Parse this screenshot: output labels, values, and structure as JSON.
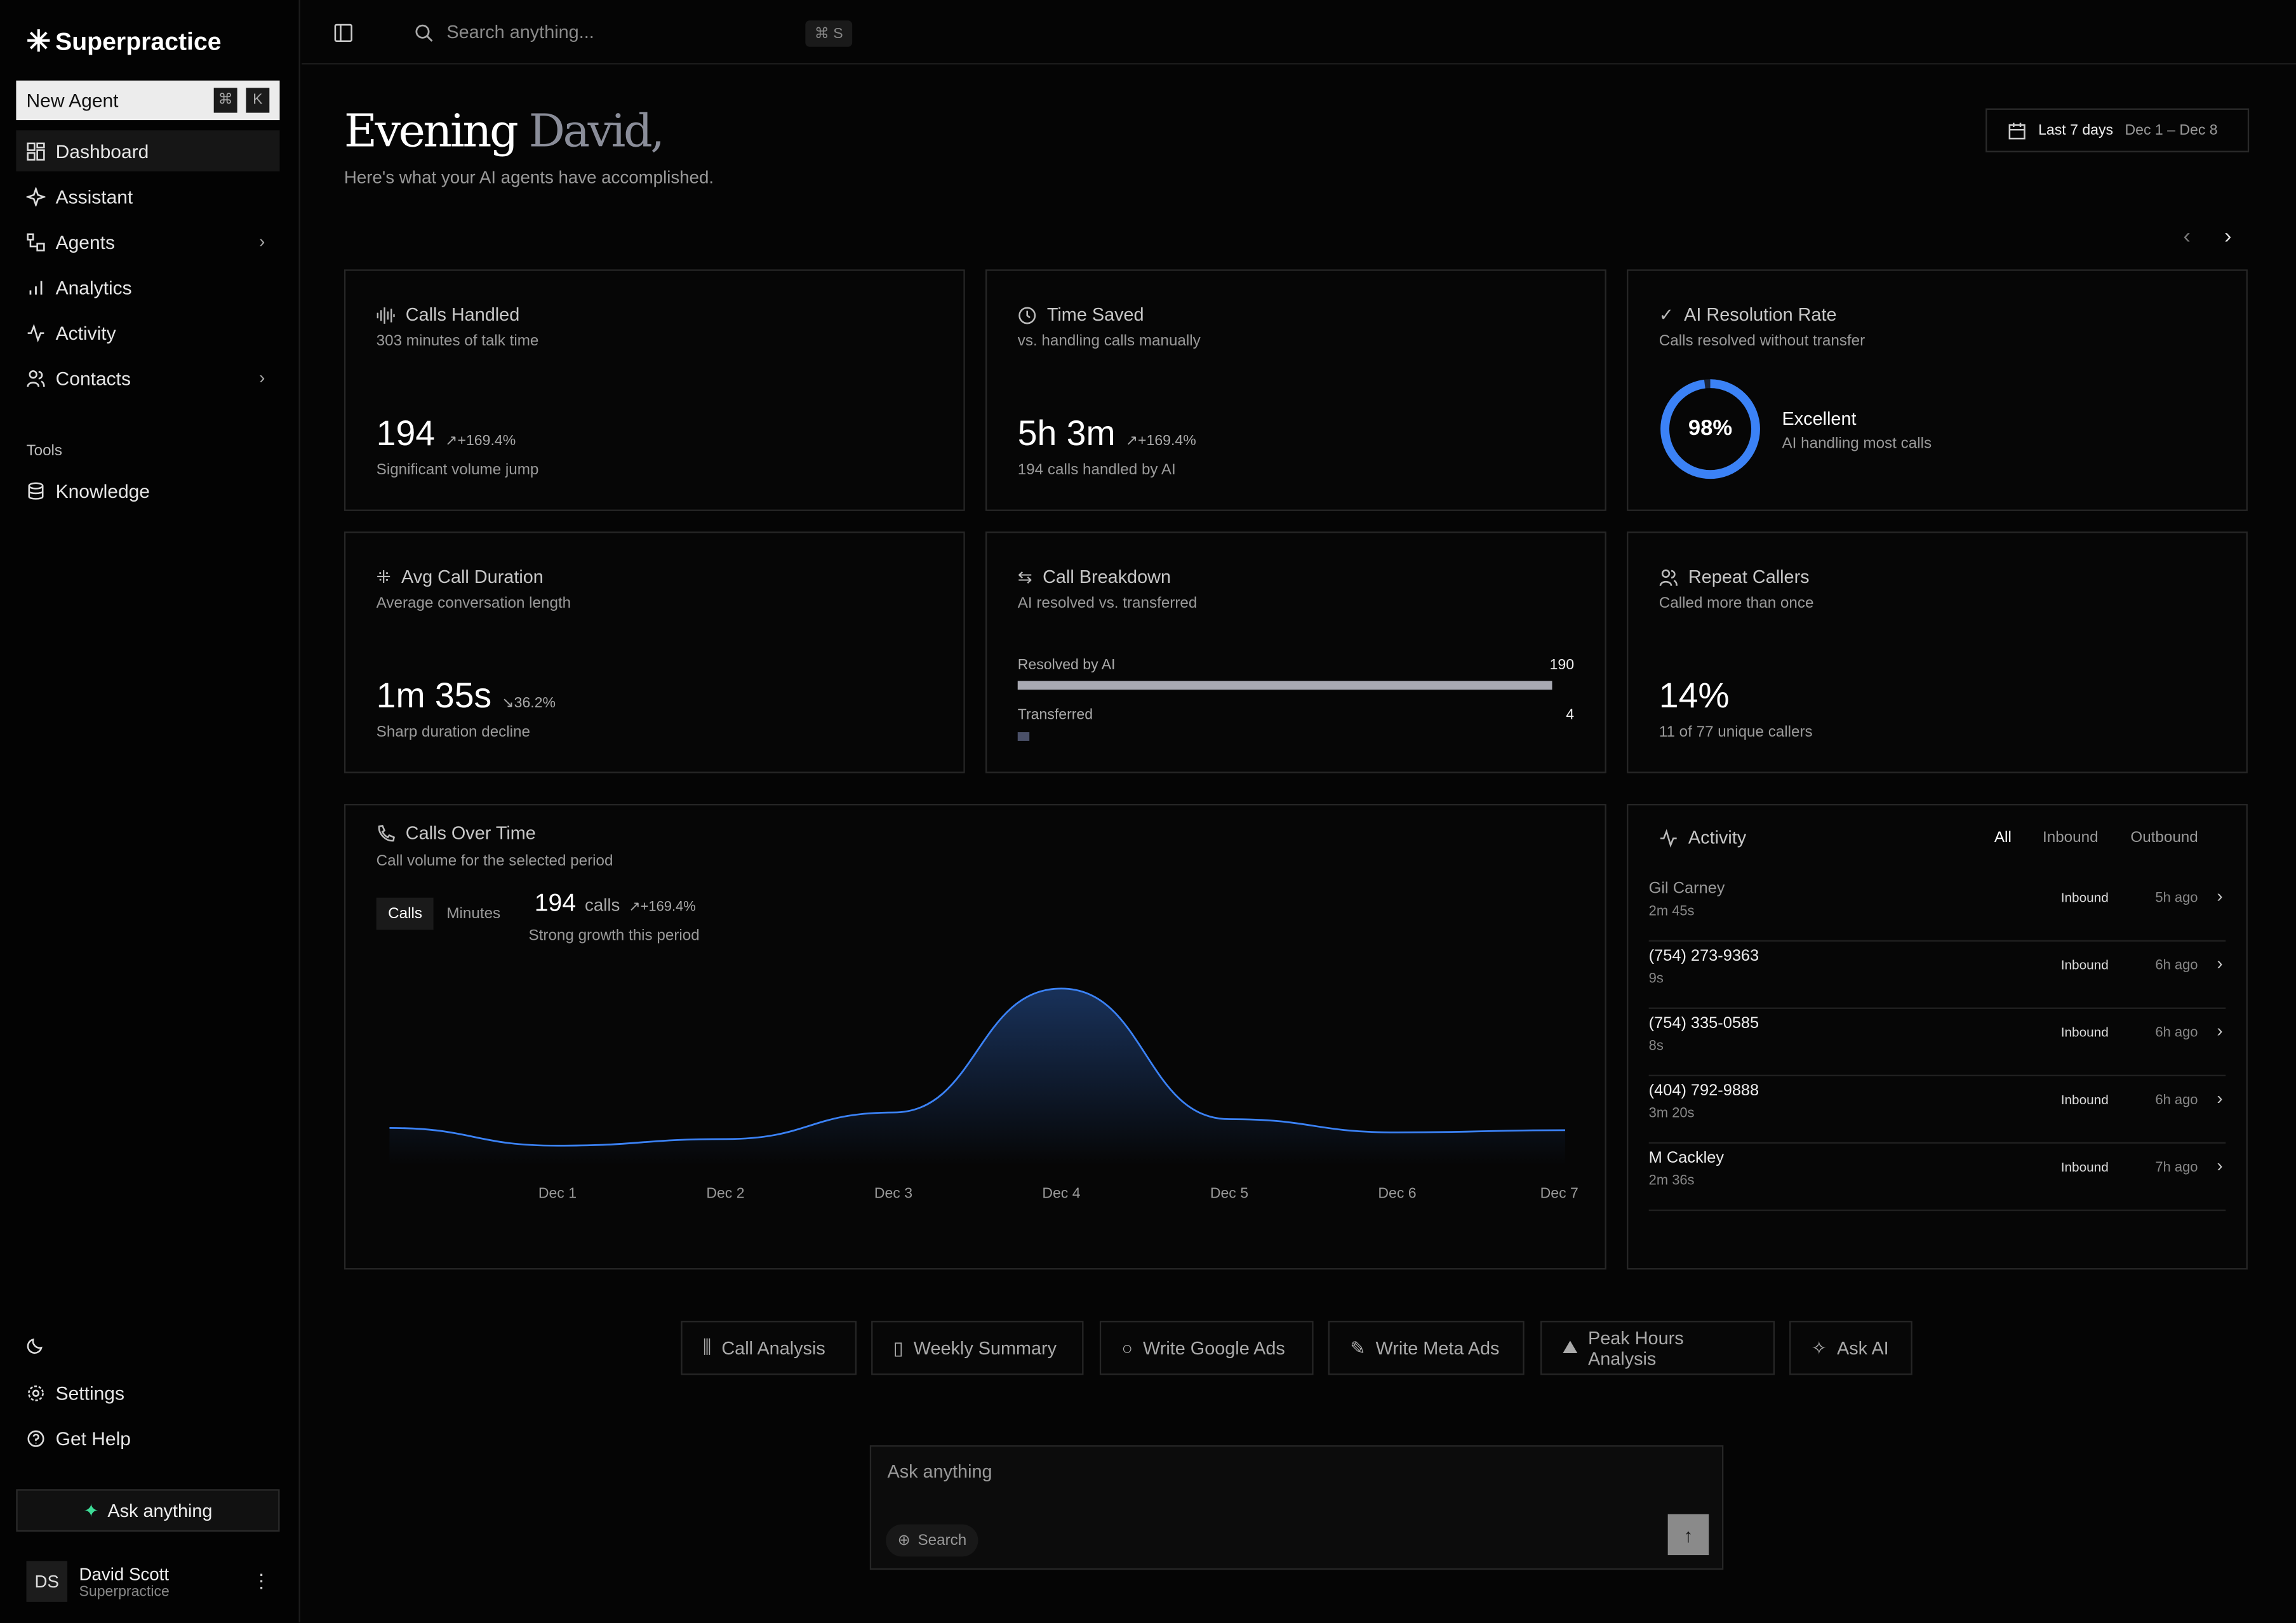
{
  "app": {
    "name": "Superpractice"
  },
  "sidebar": {
    "new_agent": "New Agent",
    "shortcut": [
      "⌘",
      "K"
    ],
    "items": [
      {
        "label": "Dashboard",
        "icon": "grid-icon",
        "active": true
      },
      {
        "label": "Assistant",
        "icon": "sparkle-icon"
      },
      {
        "label": "Agents",
        "icon": "agents-icon",
        "chevron": true
      },
      {
        "label": "Analytics",
        "icon": "bar-chart-icon"
      },
      {
        "label": "Activity",
        "icon": "activity-icon"
      },
      {
        "label": "Contacts",
        "icon": "users-icon",
        "chevron": true
      }
    ],
    "tools_label": "Tools",
    "tools": [
      {
        "label": "Knowledge",
        "icon": "database-icon"
      }
    ],
    "bottom": [
      {
        "label": "Settings",
        "icon": "gear-icon"
      },
      {
        "label": "Get Help",
        "icon": "help-icon"
      }
    ],
    "ask": "Ask anything",
    "user": {
      "initials": "DS",
      "name": "David Scott",
      "org": "Superpractice"
    }
  },
  "topbar": {
    "search_placeholder": "Search anything...",
    "shortcut": "⌘ S"
  },
  "header": {
    "greeting": "Evening",
    "name": "David,",
    "subtitle": "Here's what your AI agents have accomplished.",
    "range_label": "Last 7 days",
    "range_dates": "Dec 1 – Dec 8"
  },
  "cards": {
    "calls": {
      "title": "Calls Handled",
      "sub": "303 minutes of talk time",
      "value": "194",
      "delta": "+169.4%",
      "note": "Significant volume jump"
    },
    "time": {
      "title": "Time Saved",
      "sub": "vs. handling calls manually",
      "value": "5h 3m",
      "delta": "+169.4%",
      "note": "194 calls handled by AI"
    },
    "resolution": {
      "title": "AI Resolution Rate",
      "sub": "Calls resolved without transfer",
      "value": "98%",
      "percent": 98,
      "rating": "Excellent",
      "rating_note": "AI handling most calls",
      "color": "#3b82f6"
    },
    "duration": {
      "title": "Avg Call Duration",
      "sub": "Average conversation length",
      "value": "1m 35s",
      "delta": "36.2%",
      "note": "Sharp duration decline"
    },
    "breakdown": {
      "title": "Call Breakdown",
      "sub": "AI resolved vs. transferred",
      "resolved_label": "Resolved by AI",
      "resolved": 190,
      "resolved_text": "190",
      "transferred_label": "Transferred",
      "transferred": 4,
      "transferred_text": "4"
    },
    "repeat": {
      "title": "Repeat Callers",
      "sub": "Called more than once",
      "value": "14%",
      "note": "11 of 77 unique callers"
    }
  },
  "calls_chart": {
    "title": "Calls Over Time",
    "sub": "Call volume for the selected period",
    "toggle": [
      "Calls",
      "Minutes"
    ],
    "active_toggle": "Calls",
    "total": "194",
    "unit": "calls",
    "delta": "+169.4%",
    "note": "Strong growth this period"
  },
  "chart_data": {
    "type": "area",
    "categories": [
      "",
      "Dec 1",
      "Dec 2",
      "Dec 3",
      "Dec 4",
      "Dec 5",
      "Dec 6",
      "Dec 7"
    ],
    "values": [
      17,
      9,
      12,
      24,
      80,
      21,
      15,
      16
    ],
    "color": "#3b82f6",
    "grid": false,
    "ylim": [
      0,
      90
    ]
  },
  "activity": {
    "title": "Activity",
    "filters": [
      "All",
      "Inbound",
      "Outbound"
    ],
    "active_filter": "All",
    "rows": [
      {
        "name": "Gil Carney",
        "duration": "2m 45s",
        "direction": "Inbound",
        "time": "5h ago"
      },
      {
        "name": "(754) 273-9363",
        "duration": "9s",
        "direction": "Inbound",
        "time": "6h ago"
      },
      {
        "name": "(754) 335-0585",
        "duration": "8s",
        "direction": "Inbound",
        "time": "6h ago"
      },
      {
        "name": "(404) 792-9888",
        "duration": "3m 20s",
        "direction": "Inbound",
        "time": "6h ago"
      },
      {
        "name": "M Cackley",
        "duration": "2m 36s",
        "direction": "Inbound",
        "time": "7h ago"
      }
    ]
  },
  "quick_actions": [
    {
      "label": "Call Analysis",
      "icon": "bar-chart-icon"
    },
    {
      "label": "Weekly Summary",
      "icon": "calendar-icon"
    },
    {
      "label": "Write Google Ads",
      "icon": "search-icon"
    },
    {
      "label": "Write Meta Ads",
      "icon": "pencil-icon"
    },
    {
      "label": "Peak Hours Analysis",
      "icon": "mountain-icon"
    },
    {
      "label": "Ask AI",
      "icon": "sparkles-icon"
    }
  ],
  "composer": {
    "placeholder": "Ask anything",
    "search": "Search"
  }
}
